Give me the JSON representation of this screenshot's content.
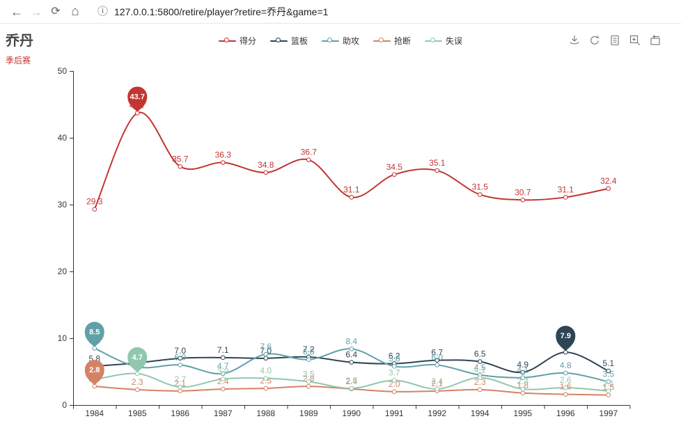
{
  "browser": {
    "url": "127.0.0.1:5800/retire/player?retire=乔丹&game=1",
    "back_icon": "←",
    "forward_icon": "→",
    "reload_icon": "⟳",
    "home_icon": "⌂",
    "info_icon": "ⓘ"
  },
  "header": {
    "title": "乔丹",
    "subtitle": "季后赛"
  },
  "chart_data": {
    "type": "line",
    "smooth": true,
    "grid": false,
    "legend_position": "top",
    "x": [
      "1984",
      "1985",
      "1986",
      "1987",
      "1988",
      "1989",
      "1990",
      "1991",
      "1992",
      "1994",
      "1995",
      "1996",
      "1997"
    ],
    "ylim": [
      0,
      50
    ],
    "yticks": [
      0,
      10,
      20,
      30,
      40,
      50
    ],
    "series": [
      {
        "name": "得分",
        "key": "points",
        "color": "#c23531",
        "mark_max": true,
        "values": [
          29.3,
          43.7,
          35.7,
          36.3,
          34.8,
          36.7,
          31.1,
          34.5,
          35.1,
          31.5,
          30.7,
          31.1,
          32.4
        ]
      },
      {
        "name": "篮板",
        "key": "rebounds",
        "color": "#2f4554",
        "mark_max": true,
        "values": [
          5.8,
          6.3,
          7.0,
          7.1,
          7.0,
          7.2,
          6.4,
          6.2,
          6.7,
          6.5,
          4.9,
          7.9,
          5.1
        ]
      },
      {
        "name": "助攻",
        "key": "assists",
        "color": "#61a0a8",
        "mark_max": true,
        "values": [
          8.5,
          5.7,
          6.0,
          4.7,
          7.6,
          6.8,
          8.4,
          5.8,
          6.0,
          4.5,
          4.1,
          4.8,
          3.5
        ]
      },
      {
        "name": "抢断",
        "key": "steals",
        "color": "#d48265",
        "mark_max": true,
        "values": [
          2.8,
          2.3,
          2.1,
          2.4,
          2.5,
          2.8,
          2.4,
          2.0,
          2.1,
          2.3,
          1.8,
          1.6,
          1.5
        ]
      },
      {
        "name": "失误",
        "key": "turnovers",
        "color": "#91c7ae",
        "mark_max": true,
        "values": [
          3.8,
          4.7,
          2.7,
          3.9,
          4.0,
          3.5,
          2.5,
          3.7,
          2.4,
          4.1,
          2.4,
          2.6,
          2.1
        ]
      }
    ]
  }
}
